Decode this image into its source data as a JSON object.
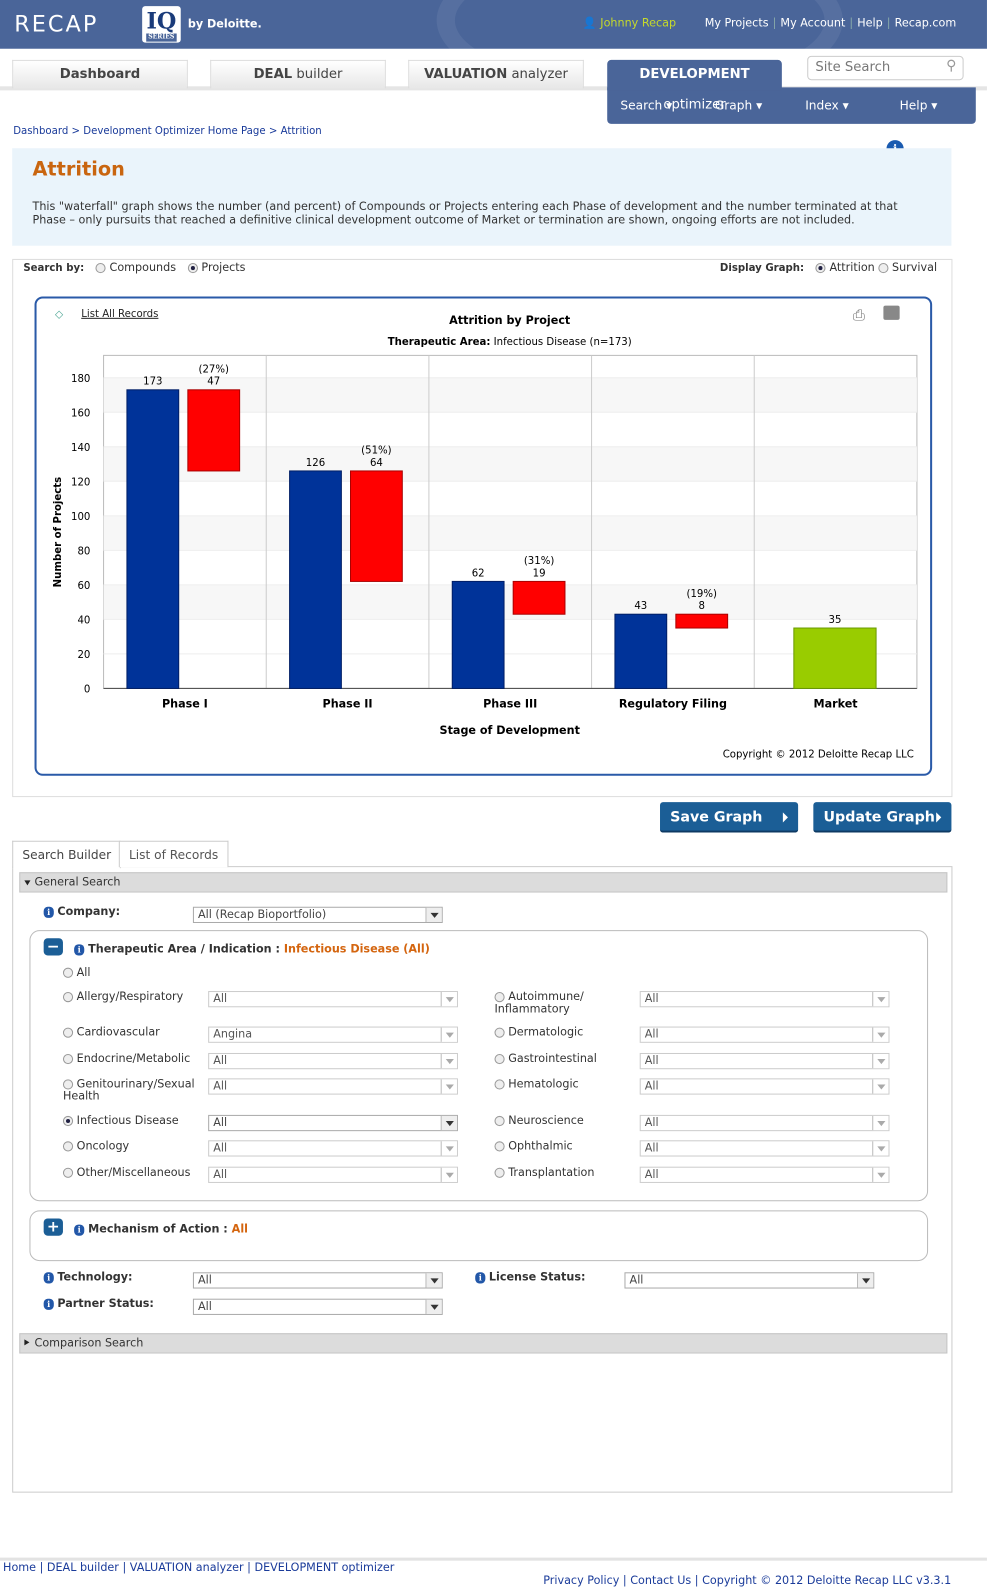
{
  "header": {
    "brand": "RECAP",
    "iq": "IQ",
    "series": "SERIES",
    "by": "by Deloitte.",
    "user": "Johnny Recap",
    "links": [
      "My Projects",
      "My Account",
      "Help",
      "Recap.com"
    ]
  },
  "tabs": [
    {
      "bold": "Dashboard",
      "rest": ""
    },
    {
      "bold": "DEAL",
      "rest": " builder"
    },
    {
      "bold": "VALUATION",
      "rest": " analyzer"
    },
    {
      "bold": "DEVELOPMENT",
      "rest": " optimizer"
    }
  ],
  "search": {
    "placeholder": "Site Search"
  },
  "devmenu": [
    "Search ▾",
    "Graph ▾",
    "Index ▾",
    "Help ▾"
  ],
  "breadcrumb": [
    "Dashboard",
    "Development Optimizer Home Page",
    "Attrition"
  ],
  "intro": {
    "title": "Attrition",
    "text": "This \"waterfall\" graph shows the number (and percent) of Compounds or Projects entering each Phase of development and the number terminated at that Phase – only pursuits that reached a definitive clinical development outcome of Market or termination are shown, ongoing efforts are not included."
  },
  "options": {
    "search_by_label": "Search by:",
    "search_by": [
      "Compounds",
      "Projects"
    ],
    "search_by_selected": "Projects",
    "display_label": "Display Graph:",
    "display": [
      "Attrition",
      "Survival"
    ],
    "display_selected": "Attrition"
  },
  "list_all": "List All Records",
  "chart_data": {
    "type": "bar",
    "title": "Attrition by Project",
    "subtitle_label": "Therapeutic Area:",
    "subtitle": "Infectious Disease (n=173)",
    "xlabel": "Stage of Development",
    "ylabel": "Number of Projects",
    "yticks": [
      0,
      20,
      40,
      60,
      80,
      100,
      120,
      140,
      160,
      180
    ],
    "categories": [
      "Phase I",
      "Phase II",
      "Phase III",
      "Regulatory Filing",
      "Market"
    ],
    "entering": [
      173,
      126,
      62,
      43,
      35
    ],
    "terminated": [
      47,
      64,
      19,
      8,
      null
    ],
    "terminated_pct": [
      "(27%)",
      "(51%)",
      "(31%)",
      "(19%)",
      null
    ],
    "colors": {
      "entering": "#003399",
      "terminated": "#ff0000",
      "market": "#99cc00"
    },
    "grid": true,
    "copyright": "Copyright © 2012 Deloitte Recap LLC"
  },
  "buttons": {
    "save": "Save Graph",
    "update": "Update Graph"
  },
  "builder": {
    "tabs": [
      "Search Builder",
      "List of Records"
    ],
    "general": "General Search",
    "company_label": "Company:",
    "company": "All (Recap Bioportfolio)",
    "ta_label": "Therapeutic Area / Indication",
    "ta_value": "Infectious Disease (All)",
    "all": "All",
    "left": [
      {
        "l": "Allergy/Respiratory",
        "v": "All"
      },
      {
        "l": "Cardiovascular",
        "v": "Angina"
      },
      {
        "l": "Endocrine/Metabolic",
        "v": "All"
      },
      {
        "l": "Genitourinary/Sexual Health",
        "v": "All"
      },
      {
        "l": "Infectious Disease",
        "v": "All",
        "on": true
      },
      {
        "l": "Oncology",
        "v": "All"
      },
      {
        "l": "Other/Miscellaneous",
        "v": "All"
      }
    ],
    "right": [
      {
        "l": "Autoimmune/ Inflammatory",
        "v": "All"
      },
      {
        "l": "Dermatologic",
        "v": "All"
      },
      {
        "l": "Gastrointestinal",
        "v": "All"
      },
      {
        "l": "Hematologic",
        "v": "All"
      },
      {
        "l": "Neuroscience",
        "v": "All"
      },
      {
        "l": "Ophthalmic",
        "v": "All"
      },
      {
        "l": "Transplantation",
        "v": "All"
      }
    ],
    "moa_label": "Mechanism of Action",
    "moa_value": "All",
    "tech_label": "Technology:",
    "tech": "All",
    "license_label": "License Status:",
    "license": "All",
    "partner_label": "Partner Status:",
    "partner": "All",
    "comparison": "Comparison Search"
  },
  "footer": {
    "links": [
      "Home",
      "DEAL builder",
      "VALUATION analyzer",
      "DEVELOPMENT optimizer"
    ],
    "right": [
      "Privacy Policy",
      "Contact Us",
      "Copyright © 2012 Deloitte Recap LLC v3.3.1"
    ]
  }
}
